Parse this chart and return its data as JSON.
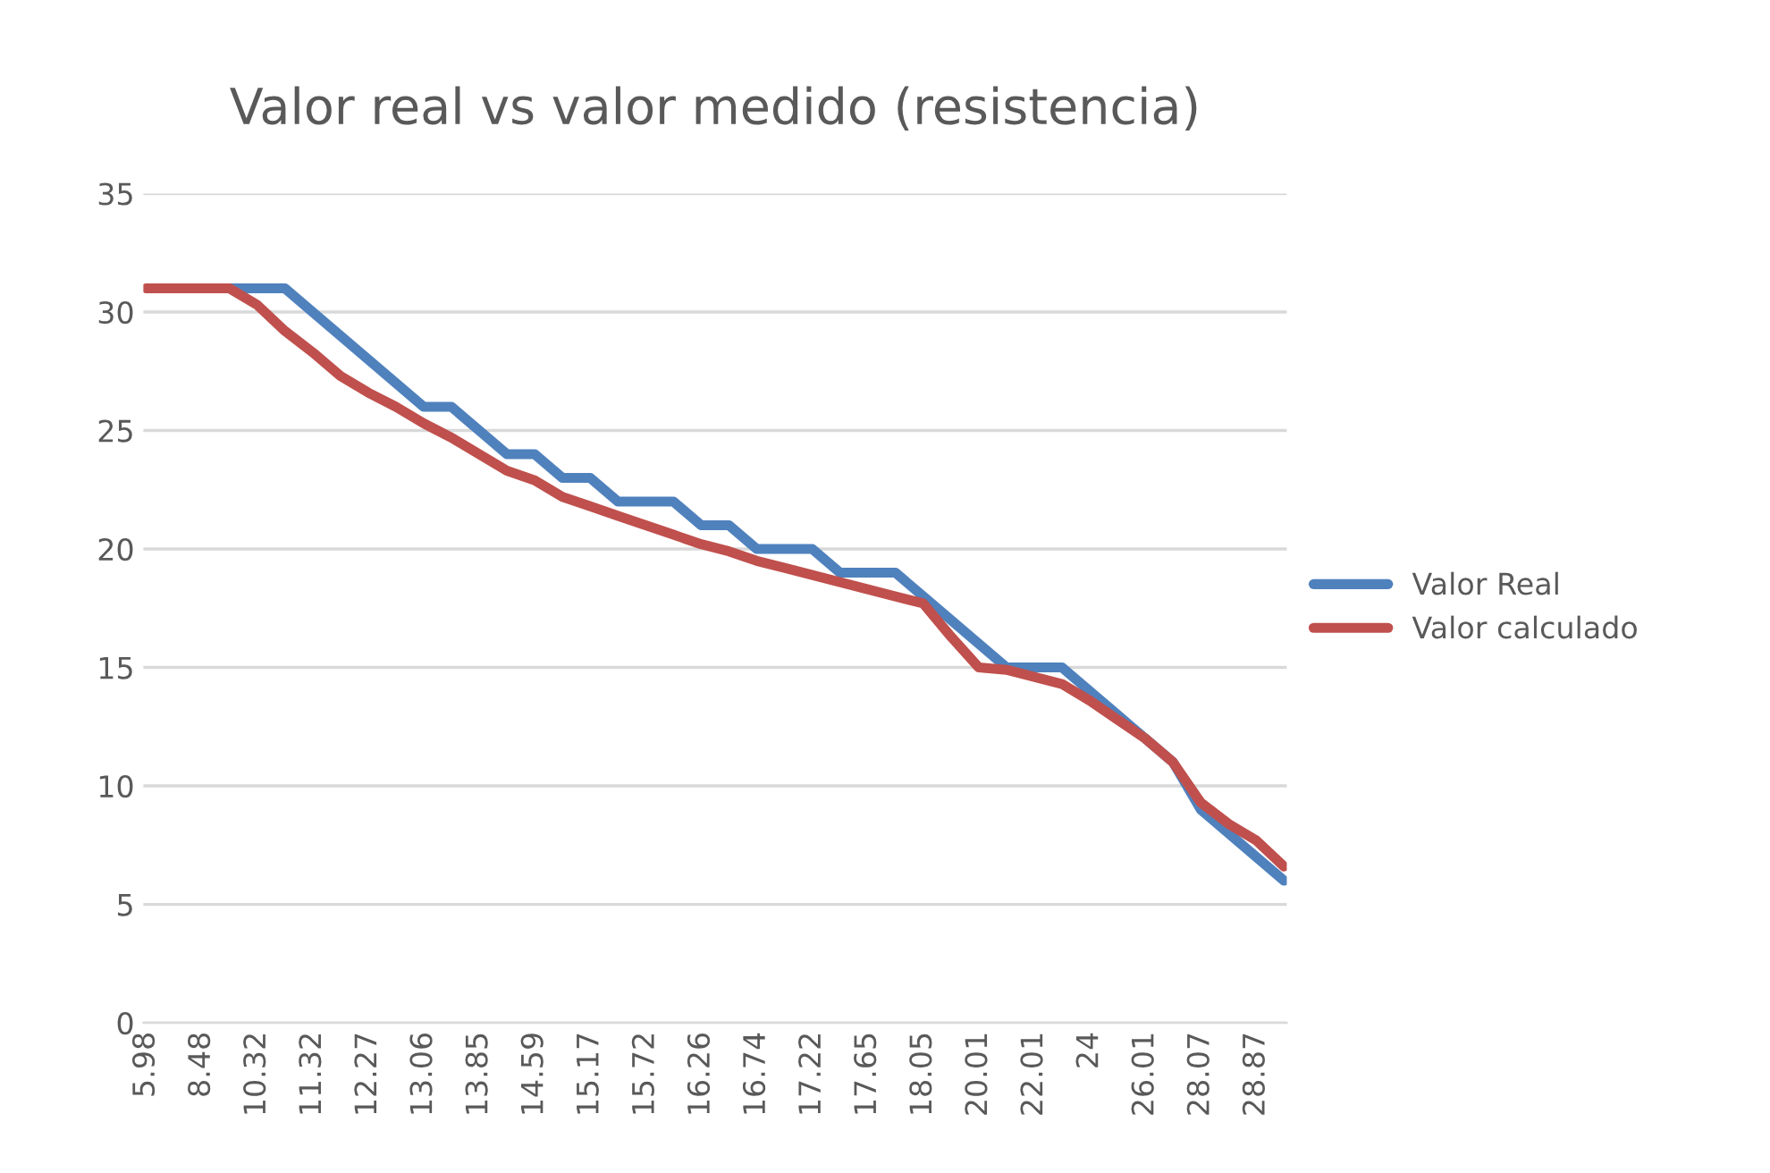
{
  "chart_data": {
    "type": "line",
    "title": "Valor real vs valor medido (resistencia)",
    "categories": [
      "5.98",
      null,
      "8.48",
      null,
      "10.32",
      null,
      "11.32",
      null,
      "12.27",
      null,
      "13.06",
      null,
      "13.85",
      null,
      "14.59",
      null,
      "15.17",
      null,
      "15.72",
      null,
      "16.26",
      null,
      "16.74",
      null,
      "17.22",
      null,
      "17.65",
      null,
      "18.05",
      null,
      "20.01",
      null,
      "22.01",
      null,
      "24",
      null,
      "26.01",
      null,
      "28.07",
      null,
      "28.87",
      null
    ],
    "series": [
      {
        "name": "Valor Real",
        "color": "#4f81bd",
        "values": [
          null,
          null,
          null,
          31,
          31,
          31,
          30,
          29,
          28,
          27,
          26,
          26,
          25,
          24,
          24,
          23,
          23,
          22,
          22,
          22,
          21,
          21,
          20,
          20,
          20,
          19,
          19,
          19,
          18,
          17,
          16,
          15,
          15,
          15,
          14,
          13,
          12,
          11,
          9,
          8,
          7,
          6
        ]
      },
      {
        "name": "Valor calculado",
        "color": "#c0504d",
        "values": [
          31,
          31,
          31,
          31,
          30.3,
          29.2,
          28.3,
          27.3,
          26.6,
          26,
          25.3,
          24.7,
          24,
          23.3,
          22.9,
          22.2,
          21.8,
          21.4,
          21,
          20.6,
          20.2,
          19.9,
          19.5,
          19.2,
          18.9,
          18.6,
          18.3,
          18,
          17.7,
          16.3,
          15,
          14.9,
          14.6,
          14.3,
          13.6,
          12.8,
          12,
          11,
          9.3,
          8.4,
          7.7,
          6.6
        ]
      }
    ],
    "ylim": [
      0,
      35
    ],
    "yticks": [
      0,
      5,
      10,
      15,
      20,
      25,
      30,
      35
    ],
    "grid": "y",
    "legend": "right"
  }
}
